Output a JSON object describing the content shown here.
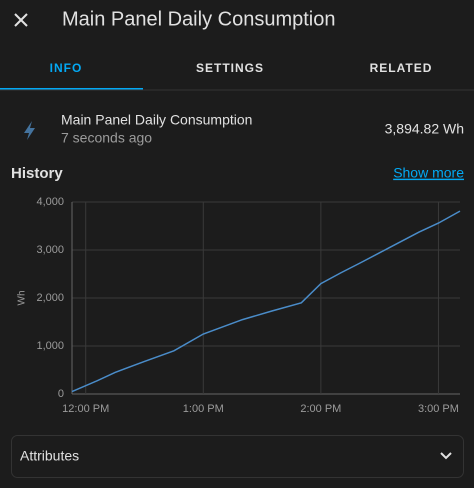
{
  "dialog": {
    "title": "Main Panel Daily Consumption",
    "tabs": [
      "INFO",
      "SETTINGS",
      "RELATED"
    ],
    "entity": {
      "name": "Main Panel Daily Consumption",
      "updated": "7 seconds ago",
      "state": "3,894.82 Wh"
    },
    "history": {
      "title": "History",
      "link": "Show more"
    },
    "attributes": "Attributes"
  },
  "chart_data": {
    "type": "line",
    "y_label": "Wh",
    "x": [
      "11:53 AM",
      "12:05 PM",
      "12:15 PM",
      "12:30 PM",
      "12:45 PM",
      "1:00 PM",
      "1:10 PM",
      "1:20 PM",
      "1:35 PM",
      "1:50 PM",
      "2:00 PM",
      "2:10 PM",
      "2:20 PM",
      "2:35 PM",
      "2:50 PM",
      "3:00 PM",
      "3:11 PM"
    ],
    "series": [
      {
        "name": "Main Panel Daily Consumption",
        "color": "#4a8cc9",
        "values": [
          50,
          260,
          450,
          680,
          900,
          1250,
          1400,
          1550,
          1730,
          1900,
          2300,
          2520,
          2730,
          3050,
          3370,
          3560,
          3810
        ]
      }
    ],
    "xlim": [
      "11:53 AM",
      "3:11 PM"
    ],
    "xticks": [
      "12:00 PM",
      "1:00 PM",
      "2:00 PM",
      "3:00 PM"
    ],
    "ylim": [
      0,
      4000
    ],
    "yticks": [
      0,
      {
        "value": 1000,
        "label": "1,000"
      },
      {
        "value": 2000,
        "label": "2,000"
      },
      {
        "value": 3000,
        "label": "3,000"
      },
      {
        "value": 4000,
        "label": "4,000"
      }
    ],
    "grid": true
  }
}
